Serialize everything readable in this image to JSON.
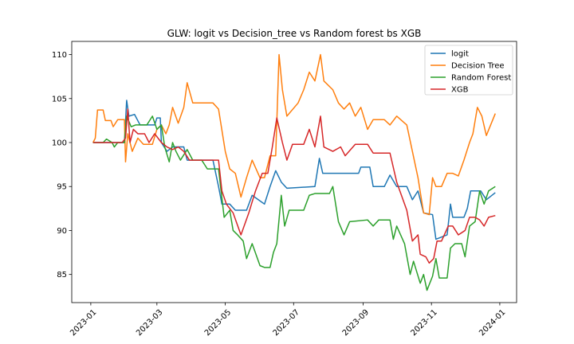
{
  "chart_data": {
    "type": "line",
    "title": "GLW: logit vs Decision_tree vs Random forest bs XGB",
    "xlabel": "",
    "ylabel": "",
    "x_tick_labels": [
      "2023-01",
      "2023-03",
      "2023-05",
      "2023-07",
      "2023-09",
      "2023-11",
      "2024-01"
    ],
    "x_tick_dates": [
      "2023-01-01",
      "2023-03-01",
      "2023-05-01",
      "2023-07-01",
      "2023-09-01",
      "2023-11-01",
      "2024-01-01"
    ],
    "xlim": [
      "2022-12-15",
      "2024-01-16"
    ],
    "y_ticks": [
      85,
      90,
      95,
      100,
      105,
      110
    ],
    "y_tick_labels": [
      "85",
      "90",
      "95",
      "100",
      "105",
      "110"
    ],
    "ylim": [
      81.8,
      111.5
    ],
    "grid": false,
    "legend_position": "top-right",
    "series": [
      {
        "name": "logit",
        "color": "#1f77b4",
        "points": [
          [
            "2023-01-03",
            100.0
          ],
          [
            "2023-01-31",
            100.0
          ],
          [
            "2023-02-02",
            104.8
          ],
          [
            "2023-02-04",
            103.0
          ],
          [
            "2023-02-09",
            103.2
          ],
          [
            "2023-02-14",
            102.0
          ],
          [
            "2023-02-20",
            102.0
          ],
          [
            "2023-02-27",
            102.0
          ],
          [
            "2023-03-01",
            102.8
          ],
          [
            "2023-03-04",
            102.8
          ],
          [
            "2023-03-05",
            100.0
          ],
          [
            "2023-03-10",
            99.0
          ],
          [
            "2023-03-15",
            99.5
          ],
          [
            "2023-03-25",
            99.5
          ],
          [
            "2023-03-28",
            98.0
          ],
          [
            "2023-04-20",
            98.0
          ],
          [
            "2023-04-25",
            95.0
          ],
          [
            "2023-04-28",
            93.0
          ],
          [
            "2023-05-05",
            93.0
          ],
          [
            "2023-05-10",
            92.3
          ],
          [
            "2023-05-20",
            92.3
          ],
          [
            "2023-05-25",
            94.0
          ],
          [
            "2023-06-05",
            93.0
          ],
          [
            "2023-06-10",
            95.0
          ],
          [
            "2023-06-15",
            96.8
          ],
          [
            "2023-06-20",
            95.5
          ],
          [
            "2023-06-25",
            94.8
          ],
          [
            "2023-07-20",
            95.0
          ],
          [
            "2023-07-24",
            98.2
          ],
          [
            "2023-07-27",
            96.5
          ],
          [
            "2023-08-28",
            96.5
          ],
          [
            "2023-08-30",
            97.2
          ],
          [
            "2023-09-07",
            97.2
          ],
          [
            "2023-09-10",
            95.0
          ],
          [
            "2023-09-20",
            95.0
          ],
          [
            "2023-09-25",
            96.3
          ],
          [
            "2023-10-01",
            95.0
          ],
          [
            "2023-10-10",
            95.0
          ],
          [
            "2023-10-15",
            93.5
          ],
          [
            "2023-10-20",
            94.5
          ],
          [
            "2023-10-25",
            92.0
          ],
          [
            "2023-11-02",
            91.8
          ],
          [
            "2023-11-05",
            89.0
          ],
          [
            "2023-11-15",
            89.5
          ],
          [
            "2023-11-18",
            93.0
          ],
          [
            "2023-11-20",
            91.5
          ],
          [
            "2023-11-30",
            91.5
          ],
          [
            "2023-12-03",
            92.5
          ],
          [
            "2023-12-06",
            94.5
          ],
          [
            "2023-12-15",
            94.5
          ],
          [
            "2023-12-20",
            93.5
          ],
          [
            "2023-12-28",
            94.3
          ]
        ]
      },
      {
        "name": "Decision Tree",
        "color": "#ff7f0e",
        "points": [
          [
            "2023-01-03",
            100.0
          ],
          [
            "2023-01-05",
            100.5
          ],
          [
            "2023-01-07",
            103.7
          ],
          [
            "2023-01-12",
            103.7
          ],
          [
            "2023-01-14",
            102.5
          ],
          [
            "2023-01-19",
            102.5
          ],
          [
            "2023-01-21",
            101.8
          ],
          [
            "2023-01-25",
            102.6
          ],
          [
            "2023-01-31",
            102.6
          ],
          [
            "2023-02-01",
            97.8
          ],
          [
            "2023-02-03",
            101.0
          ],
          [
            "2023-02-07",
            99.0
          ],
          [
            "2023-02-12",
            100.5
          ],
          [
            "2023-02-17",
            99.8
          ],
          [
            "2023-02-25",
            99.8
          ],
          [
            "2023-03-01",
            101.5
          ],
          [
            "2023-03-05",
            102.0
          ],
          [
            "2023-03-09",
            101.0
          ],
          [
            "2023-03-12",
            102.0
          ],
          [
            "2023-03-15",
            104.0
          ],
          [
            "2023-03-20",
            102.2
          ],
          [
            "2023-03-25",
            104.0
          ],
          [
            "2023-03-28",
            106.8
          ],
          [
            "2023-04-02",
            104.5
          ],
          [
            "2023-04-20",
            104.5
          ],
          [
            "2023-04-25",
            103.8
          ],
          [
            "2023-05-01",
            99.0
          ],
          [
            "2023-05-05",
            97.0
          ],
          [
            "2023-05-10",
            96.5
          ],
          [
            "2023-05-15",
            93.8
          ],
          [
            "2023-05-20",
            96.0
          ],
          [
            "2023-05-25",
            98.0
          ],
          [
            "2023-06-01",
            96.0
          ],
          [
            "2023-06-05",
            96.0
          ],
          [
            "2023-06-10",
            98.5
          ],
          [
            "2023-06-15",
            98.5
          ],
          [
            "2023-06-18",
            110.0
          ],
          [
            "2023-06-21",
            106.0
          ],
          [
            "2023-06-25",
            103.0
          ],
          [
            "2023-07-05",
            104.5
          ],
          [
            "2023-07-10",
            106.0
          ],
          [
            "2023-07-15",
            108.0
          ],
          [
            "2023-07-20",
            107.0
          ],
          [
            "2023-07-25",
            110.0
          ],
          [
            "2023-07-28",
            107.0
          ],
          [
            "2023-08-05",
            106.0
          ],
          [
            "2023-08-10",
            104.5
          ],
          [
            "2023-08-15",
            103.8
          ],
          [
            "2023-08-20",
            104.5
          ],
          [
            "2023-08-25",
            103.0
          ],
          [
            "2023-08-30",
            104.0
          ],
          [
            "2023-09-05",
            101.5
          ],
          [
            "2023-09-10",
            102.6
          ],
          [
            "2023-09-20",
            102.6
          ],
          [
            "2023-09-25",
            102.0
          ],
          [
            "2023-10-01",
            103.0
          ],
          [
            "2023-10-10",
            102.0
          ],
          [
            "2023-10-15",
            99.0
          ],
          [
            "2023-10-20",
            96.0
          ],
          [
            "2023-10-25",
            92.0
          ],
          [
            "2023-10-30",
            91.8
          ],
          [
            "2023-11-02",
            96.0
          ],
          [
            "2023-11-05",
            95.0
          ],
          [
            "2023-11-10",
            95.0
          ],
          [
            "2023-11-15",
            96.5
          ],
          [
            "2023-11-20",
            96.5
          ],
          [
            "2023-11-25",
            96.2
          ],
          [
            "2023-11-30",
            98.0
          ],
          [
            "2023-12-05",
            100.0
          ],
          [
            "2023-12-08",
            101.0
          ],
          [
            "2023-12-12",
            104.0
          ],
          [
            "2023-12-16",
            103.0
          ],
          [
            "2023-12-20",
            100.8
          ],
          [
            "2023-12-28",
            103.3
          ]
        ]
      },
      {
        "name": "Random Forest",
        "color": "#2ca02c",
        "points": [
          [
            "2023-01-03",
            100.0
          ],
          [
            "2023-01-12",
            100.0
          ],
          [
            "2023-01-15",
            100.4
          ],
          [
            "2023-01-20",
            100.0
          ],
          [
            "2023-01-22",
            99.5
          ],
          [
            "2023-01-25",
            100.0
          ],
          [
            "2023-01-31",
            100.0
          ],
          [
            "2023-02-02",
            103.0
          ],
          [
            "2023-02-06",
            101.8
          ],
          [
            "2023-02-10",
            102.0
          ],
          [
            "2023-02-20",
            102.0
          ],
          [
            "2023-02-25",
            103.0
          ],
          [
            "2023-03-01",
            101.5
          ],
          [
            "2023-03-05",
            102.0
          ],
          [
            "2023-03-08",
            99.5
          ],
          [
            "2023-03-12",
            97.8
          ],
          [
            "2023-03-15",
            100.0
          ],
          [
            "2023-03-18",
            99.0
          ],
          [
            "2023-03-22",
            98.0
          ],
          [
            "2023-03-28",
            99.2
          ],
          [
            "2023-04-02",
            98.0
          ],
          [
            "2023-04-10",
            98.0
          ],
          [
            "2023-04-15",
            97.0
          ],
          [
            "2023-04-25",
            97.0
          ],
          [
            "2023-04-30",
            91.5
          ],
          [
            "2023-05-05",
            92.3
          ],
          [
            "2023-05-08",
            90.0
          ],
          [
            "2023-05-12",
            89.5
          ],
          [
            "2023-05-17",
            88.8
          ],
          [
            "2023-05-20",
            86.8
          ],
          [
            "2023-05-25",
            88.5
          ],
          [
            "2023-06-01",
            86.0
          ],
          [
            "2023-06-05",
            85.8
          ],
          [
            "2023-06-10",
            85.8
          ],
          [
            "2023-06-13",
            87.5
          ],
          [
            "2023-06-16",
            88.5
          ],
          [
            "2023-06-20",
            94.0
          ],
          [
            "2023-06-23",
            90.5
          ],
          [
            "2023-06-27",
            92.3
          ],
          [
            "2023-07-10",
            92.3
          ],
          [
            "2023-07-15",
            94.0
          ],
          [
            "2023-07-20",
            94.2
          ],
          [
            "2023-08-02",
            94.2
          ],
          [
            "2023-08-05",
            95.0
          ],
          [
            "2023-08-10",
            91.0
          ],
          [
            "2023-08-15",
            89.5
          ],
          [
            "2023-08-20",
            91.0
          ],
          [
            "2023-09-05",
            91.2
          ],
          [
            "2023-09-10",
            90.5
          ],
          [
            "2023-09-15",
            91.2
          ],
          [
            "2023-09-25",
            91.2
          ],
          [
            "2023-09-28",
            89.0
          ],
          [
            "2023-10-01",
            90.5
          ],
          [
            "2023-10-08",
            88.5
          ],
          [
            "2023-10-13",
            85.0
          ],
          [
            "2023-10-16",
            86.5
          ],
          [
            "2023-10-22",
            84.0
          ],
          [
            "2023-10-25",
            85.0
          ],
          [
            "2023-10-28",
            83.2
          ],
          [
            "2023-11-02",
            84.8
          ],
          [
            "2023-11-05",
            86.8
          ],
          [
            "2023-11-08",
            84.6
          ],
          [
            "2023-11-15",
            84.6
          ],
          [
            "2023-11-18",
            88.0
          ],
          [
            "2023-11-22",
            88.5
          ],
          [
            "2023-11-28",
            88.5
          ],
          [
            "2023-12-01",
            87.0
          ],
          [
            "2023-12-05",
            90.5
          ],
          [
            "2023-12-10",
            91.0
          ],
          [
            "2023-12-14",
            94.5
          ],
          [
            "2023-12-18",
            93.0
          ],
          [
            "2023-12-22",
            94.5
          ],
          [
            "2023-12-28",
            95.0
          ]
        ]
      },
      {
        "name": "XGB",
        "color": "#d62728",
        "points": [
          [
            "2023-01-03",
            100.0
          ],
          [
            "2023-01-29",
            100.0
          ],
          [
            "2023-02-01",
            100.5
          ],
          [
            "2023-02-03",
            103.8
          ],
          [
            "2023-02-05",
            100.0
          ],
          [
            "2023-02-08",
            101.5
          ],
          [
            "2023-02-12",
            101.0
          ],
          [
            "2023-02-18",
            101.0
          ],
          [
            "2023-02-22",
            100.0
          ],
          [
            "2023-02-27",
            101.0
          ],
          [
            "2023-03-05",
            100.0
          ],
          [
            "2023-03-10",
            99.5
          ],
          [
            "2023-03-15",
            99.2
          ],
          [
            "2023-03-20",
            99.5
          ],
          [
            "2023-03-25",
            99.0
          ],
          [
            "2023-03-30",
            98.0
          ],
          [
            "2023-04-25",
            98.0
          ],
          [
            "2023-04-28",
            94.5
          ],
          [
            "2023-05-02",
            93.0
          ],
          [
            "2023-05-08",
            92.0
          ],
          [
            "2023-05-15",
            89.5
          ],
          [
            "2023-05-22",
            92.0
          ],
          [
            "2023-05-28",
            94.5
          ],
          [
            "2023-06-03",
            96.5
          ],
          [
            "2023-06-08",
            96.5
          ],
          [
            "2023-06-12",
            99.5
          ],
          [
            "2023-06-16",
            102.8
          ],
          [
            "2023-06-21",
            100.0
          ],
          [
            "2023-06-25",
            98.0
          ],
          [
            "2023-06-30",
            99.8
          ],
          [
            "2023-07-10",
            99.8
          ],
          [
            "2023-07-15",
            101.5
          ],
          [
            "2023-07-20",
            99.5
          ],
          [
            "2023-07-25",
            103.0
          ],
          [
            "2023-07-28",
            99.5
          ],
          [
            "2023-08-05",
            99.0
          ],
          [
            "2023-08-12",
            99.5
          ],
          [
            "2023-08-16",
            98.5
          ],
          [
            "2023-08-25",
            99.8
          ],
          [
            "2023-09-05",
            99.8
          ],
          [
            "2023-09-10",
            98.8
          ],
          [
            "2023-09-25",
            98.8
          ],
          [
            "2023-10-01",
            95.5
          ],
          [
            "2023-10-10",
            92.3
          ],
          [
            "2023-10-15",
            88.8
          ],
          [
            "2023-10-20",
            89.5
          ],
          [
            "2023-10-22",
            87.3
          ],
          [
            "2023-10-27",
            87.0
          ],
          [
            "2023-10-30",
            86.3
          ],
          [
            "2023-11-03",
            86.8
          ],
          [
            "2023-11-06",
            88.8
          ],
          [
            "2023-11-10",
            88.8
          ],
          [
            "2023-11-16",
            90.5
          ],
          [
            "2023-11-20",
            90.5
          ],
          [
            "2023-11-25",
            89.5
          ],
          [
            "2023-12-01",
            90.0
          ],
          [
            "2023-12-05",
            91.5
          ],
          [
            "2023-12-10",
            91.5
          ],
          [
            "2023-12-14",
            91.2
          ],
          [
            "2023-12-18",
            90.5
          ],
          [
            "2023-12-22",
            91.5
          ],
          [
            "2023-12-28",
            91.7
          ]
        ]
      }
    ]
  }
}
